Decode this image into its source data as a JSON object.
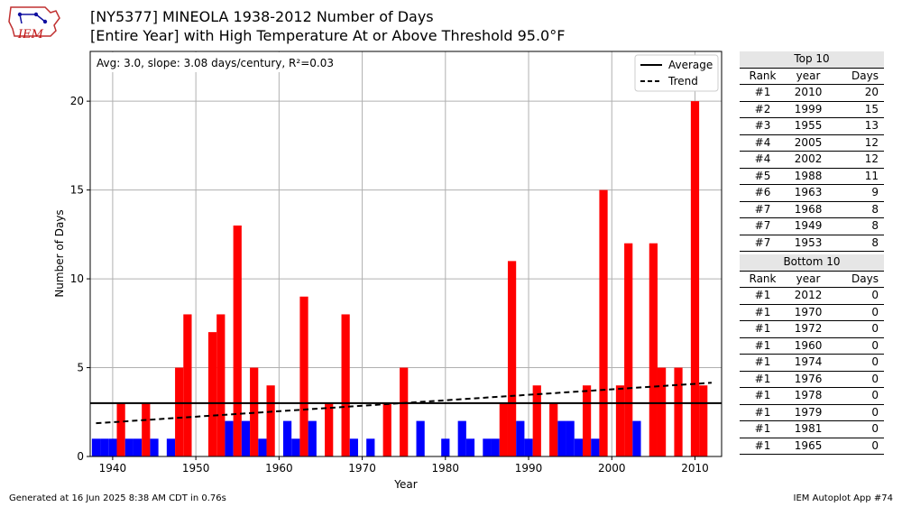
{
  "logo": {
    "text": "IEM"
  },
  "title_line1": "[NY5377] MINEOLA 1938-2012 Number of Days",
  "title_line2": "[Entire Year] with High Temperature At or Above Threshold 95.0°F",
  "stats_label": "Avg: 3.0, slope: 3.08 days/century, R²=0.03",
  "legend": {
    "average": "Average",
    "trend": "Trend"
  },
  "colors": {
    "above": "#ff0000",
    "below": "#0000ff",
    "line": "#000000"
  },
  "chart_data": {
    "type": "bar",
    "xlabel": "Year",
    "ylabel": "Number of Days",
    "xlim": [
      1937.3,
      2013.2
    ],
    "ylim": [
      0,
      22.8
    ],
    "xticks": [
      1940,
      1950,
      1960,
      1970,
      1980,
      1990,
      2000,
      2010
    ],
    "yticks": [
      0,
      5,
      10,
      15,
      20
    ],
    "grid": true,
    "legend_position": "top-right",
    "average": 3.0,
    "trend": {
      "x": [
        1938,
        2012
      ],
      "y": [
        1.87,
        4.15
      ]
    },
    "years": [
      1938,
      1939,
      1940,
      1941,
      1942,
      1943,
      1944,
      1945,
      1946,
      1947,
      1948,
      1949,
      1950,
      1951,
      1952,
      1953,
      1954,
      1955,
      1956,
      1957,
      1958,
      1959,
      1960,
      1961,
      1962,
      1963,
      1964,
      1965,
      1966,
      1967,
      1968,
      1969,
      1970,
      1971,
      1972,
      1973,
      1974,
      1975,
      1976,
      1977,
      1978,
      1979,
      1980,
      1981,
      1982,
      1983,
      1984,
      1985,
      1986,
      1987,
      1988,
      1989,
      1990,
      1991,
      1992,
      1993,
      1994,
      1995,
      1996,
      1997,
      1998,
      1999,
      2000,
      2001,
      2002,
      2003,
      2004,
      2005,
      2006,
      2007,
      2008,
      2009,
      2010,
      2011,
      2012
    ],
    "values": [
      1,
      1,
      1,
      3,
      1,
      1,
      3,
      1,
      0,
      1,
      5,
      8,
      0,
      0,
      7,
      8,
      2,
      13,
      2,
      5,
      1,
      4,
      0,
      2,
      1,
      9,
      2,
      0,
      3,
      0,
      8,
      1,
      0,
      1,
      0,
      3,
      0,
      5,
      0,
      2,
      0,
      0,
      1,
      0,
      2,
      1,
      0,
      1,
      1,
      3,
      11,
      2,
      1,
      4,
      0,
      3,
      2,
      2,
      1,
      4,
      1,
      15,
      0,
      4,
      12,
      2,
      0,
      12,
      5,
      0,
      5,
      0,
      20,
      4,
      0
    ]
  },
  "top10": {
    "title": "Top 10",
    "columns": [
      "Rank",
      "year",
      "Days"
    ],
    "rows": [
      [
        "#1",
        "2010",
        "20"
      ],
      [
        "#2",
        "1999",
        "15"
      ],
      [
        "#3",
        "1955",
        "13"
      ],
      [
        "#4",
        "2005",
        "12"
      ],
      [
        "#4",
        "2002",
        "12"
      ],
      [
        "#5",
        "1988",
        "11"
      ],
      [
        "#6",
        "1963",
        "9"
      ],
      [
        "#7",
        "1968",
        "8"
      ],
      [
        "#7",
        "1949",
        "8"
      ],
      [
        "#7",
        "1953",
        "8"
      ]
    ]
  },
  "bottom10": {
    "title": "Bottom 10",
    "columns": [
      "Rank",
      "year",
      "Days"
    ],
    "rows": [
      [
        "#1",
        "2012",
        "0"
      ],
      [
        "#1",
        "1970",
        "0"
      ],
      [
        "#1",
        "1972",
        "0"
      ],
      [
        "#1",
        "1960",
        "0"
      ],
      [
        "#1",
        "1974",
        "0"
      ],
      [
        "#1",
        "1976",
        "0"
      ],
      [
        "#1",
        "1978",
        "0"
      ],
      [
        "#1",
        "1979",
        "0"
      ],
      [
        "#1",
        "1981",
        "0"
      ],
      [
        "#1",
        "1965",
        "0"
      ]
    ]
  },
  "footer": {
    "left": "Generated at 16 Jun 2025 8:38 AM CDT in 0.76s",
    "right": "IEM Autoplot App #74"
  }
}
